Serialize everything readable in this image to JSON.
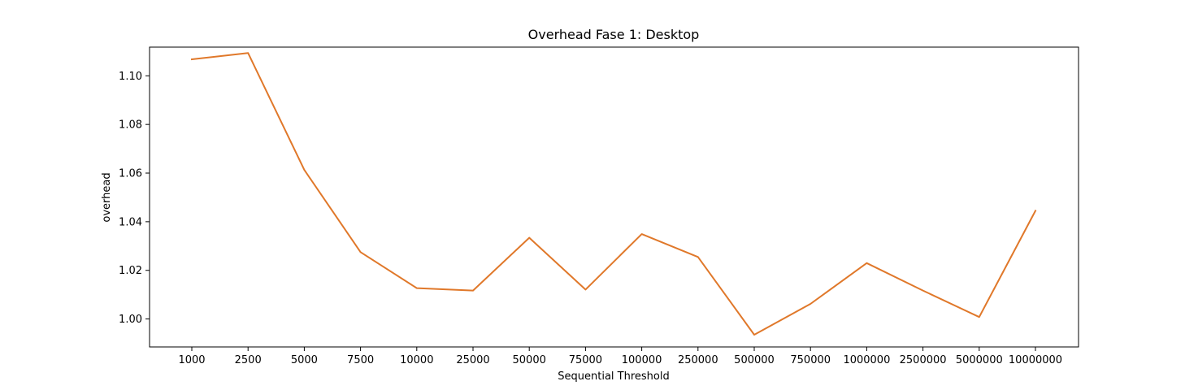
{
  "chart_data": {
    "type": "line",
    "title": "Overhead Fase 1: Desktop",
    "xlabel": "Sequential Threshold",
    "ylabel": "overhead",
    "categories": [
      "1000",
      "2500",
      "5000",
      "7500",
      "10000",
      "25000",
      "50000",
      "75000",
      "100000",
      "250000",
      "500000",
      "750000",
      "1000000",
      "2500000",
      "5000000",
      "10000000"
    ],
    "series": [
      {
        "values": [
          1.1068,
          1.1094,
          1.0613,
          1.0275,
          1.0127,
          1.0117,
          1.0334,
          1.0121,
          1.0349,
          1.0255,
          0.9935,
          1.0062,
          1.023,
          1.0117,
          1.0008,
          1.0445
        ],
        "color": "#e0782a"
      }
    ],
    "ylim": [
      0.9885,
      1.1118
    ],
    "yticks": [
      1.0,
      1.02,
      1.04,
      1.06,
      1.08,
      1.1
    ],
    "yticks_labels": [
      "1.00",
      "1.02",
      "1.04",
      "1.06",
      "1.08",
      "1.10"
    ],
    "grid": false,
    "legend": "none"
  }
}
